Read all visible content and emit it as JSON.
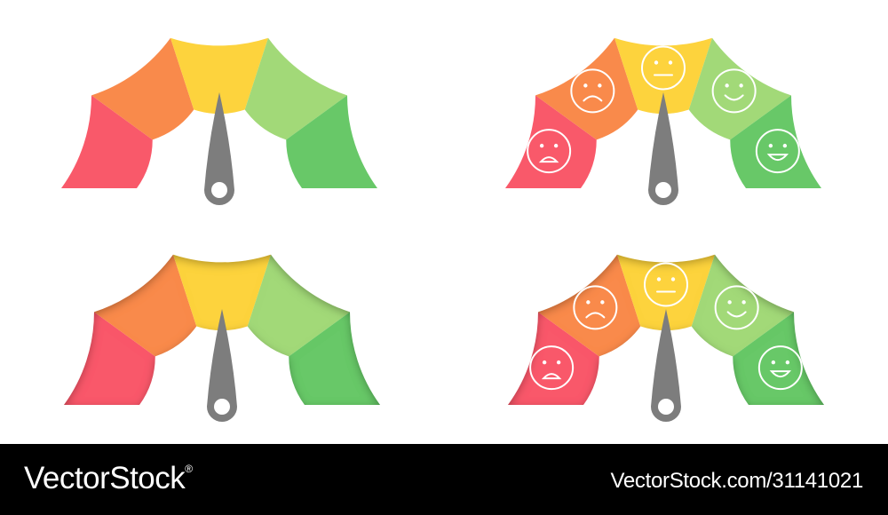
{
  "palette": {
    "segments": [
      "#f9596a",
      "#f98a4b",
      "#fdd33d",
      "#a2d978",
      "#68c868"
    ],
    "needle": "#7d7d7d",
    "face_stroke": "#ffffff",
    "footer_bg": "#000000",
    "footer_text": "#ffffff"
  },
  "gauges": [
    {
      "style": "flat",
      "faces": false,
      "needle_level": 0.5
    },
    {
      "style": "flat",
      "faces": true,
      "needle_level": 0.5
    },
    {
      "style": "inset-shadow",
      "faces": false,
      "needle_level": 0.5
    },
    {
      "style": "inset-shadow",
      "faces": true,
      "needle_level": 0.5
    }
  ],
  "face_icons": [
    "sad-face-icon",
    "frowning-face-icon",
    "neutral-face-icon",
    "smiling-face-icon",
    "happy-face-icon"
  ],
  "footer": {
    "brand": "VectorStock",
    "brand_mark": "®",
    "stock_id": "VectorStock.com/31141021"
  }
}
